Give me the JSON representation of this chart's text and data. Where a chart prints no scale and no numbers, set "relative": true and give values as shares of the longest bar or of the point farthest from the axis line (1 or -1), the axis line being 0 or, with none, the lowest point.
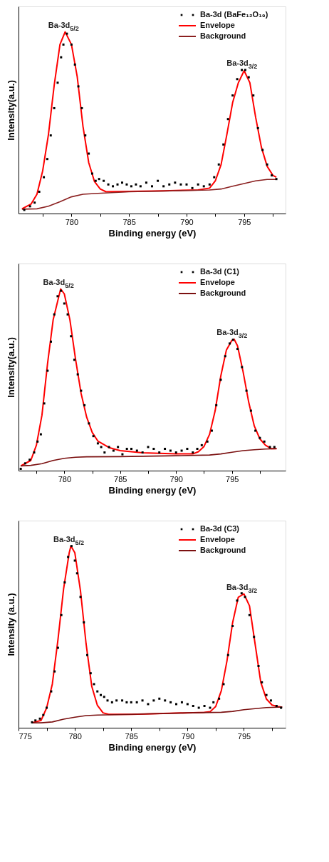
{
  "chart_data": [
    {
      "type": "line",
      "relative": true,
      "xlabel": "Binding energy (eV)",
      "ylabel": "Intensity(a.u.)",
      "tick_labels": "x",
      "legend": "top right",
      "xlim": [
        775.4,
        798.6
      ],
      "xticks": [
        {
          "value": 777.5,
          "label": null
        },
        780,
        {
          "value": 782.5,
          "label": null
        },
        785,
        {
          "value": 787.5,
          "label": null
        },
        790,
        {
          "value": 792.5,
          "label": null
        },
        795,
        {
          "value": 797.5,
          "label": null
        }
      ],
      "annotations": [
        {
          "text": "Ba-3d$_{5/2}$",
          "x": 779.5,
          "y": 1.0
        },
        {
          "text": "Ba-3d$_{3/2}$",
          "x": 795.0,
          "y": 0.79
        }
      ],
      "series": [
        {
          "name": "Ba-3d (BaFe₁₂O₁₉)",
          "type": "scatter",
          "marker": "square",
          "color": "#000000",
          "x": [
            775.9,
            776.4,
            776.8,
            777.2,
            777.6,
            777.9,
            778.2,
            778.5,
            778.8,
            779.1,
            779.3,
            779.6,
            780,
            780.3,
            780.6,
            780.9,
            781.2,
            781.5,
            781.8,
            782.1,
            782.4,
            782.8,
            783.2,
            783.6,
            784,
            784.4,
            784.8,
            785.2,
            785.6,
            786,
            786.5,
            787,
            787.5,
            788,
            788.5,
            789,
            789.5,
            790,
            790.5,
            791,
            791.5,
            792,
            792.4,
            792.8,
            793.2,
            793.6,
            794,
            794.4,
            794.8,
            795.1,
            795.4,
            795.8,
            796.2,
            796.6,
            797,
            797.4,
            797.8
          ],
          "values": [
            0.02,
            0.04,
            0.06,
            0.12,
            0.2,
            0.3,
            0.43,
            0.58,
            0.72,
            0.86,
            0.93,
            0.99,
            0.93,
            0.82,
            0.7,
            0.58,
            0.43,
            0.33,
            0.22,
            0.18,
            0.19,
            0.18,
            0.16,
            0.15,
            0.16,
            0.17,
            0.16,
            0.15,
            0.16,
            0.15,
            0.17,
            0.15,
            0.18,
            0.15,
            0.16,
            0.17,
            0.16,
            0.16,
            0.14,
            0.16,
            0.15,
            0.16,
            0.2,
            0.27,
            0.38,
            0.52,
            0.65,
            0.74,
            0.79,
            0.79,
            0.75,
            0.65,
            0.47,
            0.35,
            0.27,
            0.21,
            0.19
          ]
        },
        {
          "name": "Envelope",
          "color": "#ff0000",
          "x": [
            775.7,
            776.5,
            777,
            777.5,
            778,
            778.5,
            779,
            779.45,
            780,
            780.5,
            781,
            781.5,
            782,
            782.5,
            783,
            785,
            788,
            791,
            792,
            792.5,
            793,
            793.5,
            794,
            794.5,
            795,
            795.5,
            796,
            796.5,
            797,
            797.5,
            797.8
          ],
          "values": [
            0.026,
            0.053,
            0.106,
            0.235,
            0.435,
            0.706,
            0.93,
            1.0,
            0.93,
            0.753,
            0.48,
            0.28,
            0.176,
            0.135,
            0.12,
            0.122,
            0.125,
            0.13,
            0.14,
            0.18,
            0.27,
            0.435,
            0.61,
            0.72,
            0.786,
            0.72,
            0.53,
            0.365,
            0.26,
            0.21,
            0.2
          ]
        },
        {
          "name": "Background",
          "color": "#8b2020",
          "x": [
            775.7,
            777,
            778,
            779,
            780,
            781,
            782,
            785,
            790,
            792,
            793,
            794,
            795,
            796,
            797,
            797.8
          ],
          "values": [
            0.024,
            0.026,
            0.04,
            0.065,
            0.092,
            0.106,
            0.11,
            0.12,
            0.127,
            0.13,
            0.135,
            0.15,
            0.165,
            0.18,
            0.188,
            0.188
          ]
        }
      ]
    },
    {
      "type": "line",
      "relative": true,
      "xlabel": "Binding energy (eV)",
      "ylabel": "Intensity(a.u.)",
      "tick_labels": "x",
      "legend": "top right",
      "xlim": [
        775.9,
        799.8
      ],
      "xticks": [
        {
          "value": 777.5,
          "label": null
        },
        780,
        {
          "value": 782.5,
          "label": null
        },
        785,
        {
          "value": 787.5,
          "label": null
        },
        790,
        {
          "value": 792.5,
          "label": null
        },
        795,
        {
          "value": 797.5,
          "label": null
        }
      ],
      "annotations": [
        {
          "text": "Ba-3d$_{5/2}$",
          "x": 779.67,
          "y": 1.0
        },
        {
          "text": "Ba-3d$_{3/2}$",
          "x": 795.2,
          "y": 0.723
        }
      ],
      "series": [
        {
          "name": "Ba-3d (C1)",
          "type": "scatter",
          "marker": "square",
          "color": "#000000",
          "x": [
            776.1,
            776.5,
            776.9,
            777.3,
            777.6,
            777.9,
            778.2,
            778.5,
            778.8,
            779.1,
            779.4,
            779.7,
            780,
            780.3,
            780.6,
            780.9,
            781.2,
            781.5,
            781.8,
            782.2,
            782.6,
            783,
            783.3,
            783.6,
            784,
            784.4,
            784.8,
            785.2,
            785.6,
            786,
            786.5,
            787,
            787.5,
            788,
            788.5,
            789,
            789.5,
            790,
            790.5,
            791,
            791.5,
            791.9,
            792.3,
            792.8,
            793.2,
            793.6,
            794,
            794.4,
            794.8,
            795.1,
            795.5,
            795.9,
            796.3,
            796.7,
            797.1,
            797.5,
            797.9,
            798.4,
            798.8
          ],
          "values": [
            0.01,
            0.04,
            0.06,
            0.1,
            0.16,
            0.2,
            0.37,
            0.55,
            0.71,
            0.86,
            0.96,
            0.99,
            0.92,
            0.86,
            0.74,
            0.61,
            0.53,
            0.44,
            0.36,
            0.26,
            0.19,
            0.15,
            0.13,
            0.1,
            0.13,
            0.11,
            0.13,
            0.09,
            0.12,
            0.12,
            0.11,
            0.1,
            0.13,
            0.12,
            0.1,
            0.12,
            0.11,
            0.1,
            0.11,
            0.12,
            0.1,
            0.12,
            0.14,
            0.16,
            0.22,
            0.36,
            0.5,
            0.63,
            0.7,
            0.72,
            0.67,
            0.57,
            0.44,
            0.33,
            0.22,
            0.18,
            0.16,
            0.13,
            0.13
          ]
        },
        {
          "name": "Envelope",
          "color": "#ff0000",
          "x": [
            776.1,
            777,
            777.5,
            778,
            778.5,
            779,
            779.67,
            780,
            780.5,
            781,
            781.5,
            782,
            782.5,
            783,
            784,
            785,
            787,
            790,
            791.5,
            792,
            792.5,
            793,
            793.5,
            794,
            794.5,
            795,
            795.2,
            795.5,
            796,
            796.5,
            797,
            797.5,
            798,
            798.5,
            799
          ],
          "values": [
            0.026,
            0.056,
            0.14,
            0.306,
            0.59,
            0.83,
            1.0,
            0.973,
            0.83,
            0.615,
            0.425,
            0.294,
            0.21,
            0.163,
            0.127,
            0.11,
            0.098,
            0.092,
            0.092,
            0.104,
            0.133,
            0.2,
            0.33,
            0.52,
            0.663,
            0.717,
            0.723,
            0.687,
            0.544,
            0.377,
            0.246,
            0.175,
            0.14,
            0.121,
            0.121
          ]
        },
        {
          "name": "Background",
          "color": "#7b1010",
          "x": [
            776.1,
            777,
            778,
            779,
            780,
            781,
            782,
            785,
            790,
            793,
            794,
            795,
            796,
            797,
            798,
            799
          ],
          "values": [
            0.026,
            0.029,
            0.038,
            0.056,
            0.068,
            0.074,
            0.076,
            0.077,
            0.082,
            0.086,
            0.092,
            0.101,
            0.11,
            0.115,
            0.119,
            0.121
          ]
        }
      ]
    },
    {
      "type": "line",
      "relative": true,
      "xlabel": "Binding energy (eV)",
      "ylabel": "Intensity (a.u.)",
      "tick_labels": "x",
      "legend": "top right",
      "xlim": [
        775,
        798.7
      ],
      "xticks": [
        775,
        {
          "value": 777.5,
          "label": null
        },
        780,
        {
          "value": 782.5,
          "label": null
        },
        785,
        {
          "value": 787.5,
          "label": null
        },
        790,
        {
          "value": 792.5,
          "label": null
        },
        795,
        {
          "value": 797.5,
          "label": null
        }
      ],
      "annotations": [
        {
          "text": "Ba-3d$_{5/2}$",
          "x": 779.65,
          "y": 1.0
        },
        {
          "text": "Ba-3d$_{3/2}$",
          "x": 795.0,
          "y": 0.737
        }
      ],
      "series": [
        {
          "name": "Ba-3d (C3)",
          "type": "scatter",
          "marker": "square",
          "color": "#000000",
          "x": [
            776.2,
            776.5,
            776.9,
            777.2,
            777.5,
            777.9,
            778.2,
            778.5,
            778.8,
            779.1,
            779.4,
            779.7,
            780,
            780.2,
            780.5,
            780.8,
            781.1,
            781.4,
            781.7,
            782,
            782.3,
            782.6,
            782.9,
            783.3,
            783.7,
            784.2,
            784.6,
            785,
            785.5,
            786,
            786.5,
            787,
            787.5,
            788,
            788.5,
            789,
            789.5,
            790,
            790.5,
            791,
            791.5,
            792,
            792.3,
            792.8,
            793.2,
            793.6,
            794,
            794.4,
            794.8,
            795.1,
            795.5,
            795.9,
            796.3,
            796.6,
            797,
            797.4,
            797.9,
            798.3
          ],
          "values": [
            0.03,
            0.04,
            0.05,
            0.07,
            0.11,
            0.2,
            0.31,
            0.44,
            0.62,
            0.8,
            0.94,
            1.0,
            0.92,
            0.85,
            0.72,
            0.58,
            0.4,
            0.3,
            0.24,
            0.2,
            0.18,
            0.17,
            0.15,
            0.14,
            0.15,
            0.15,
            0.14,
            0.14,
            0.14,
            0.15,
            0.13,
            0.15,
            0.16,
            0.15,
            0.14,
            0.13,
            0.14,
            0.13,
            0.12,
            0.11,
            0.12,
            0.11,
            0.14,
            0.16,
            0.24,
            0.4,
            0.56,
            0.7,
            0.74,
            0.72,
            0.62,
            0.5,
            0.34,
            0.25,
            0.18,
            0.15,
            0.12,
            0.11
          ]
        },
        {
          "name": "Envelope",
          "color": "#ff0000",
          "x": [
            776.2,
            777,
            777.5,
            778,
            778.5,
            779,
            779.5,
            779.65,
            780,
            780.5,
            781,
            781.5,
            782,
            782.5,
            783,
            785,
            790,
            791.5,
            792,
            792.5,
            793,
            793.5,
            794,
            794.5,
            795,
            795.5,
            796,
            796.5,
            797,
            797.5,
            798,
            798.4
          ],
          "values": [
            0.027,
            0.04,
            0.11,
            0.24,
            0.484,
            0.764,
            0.963,
            1.0,
            0.963,
            0.753,
            0.46,
            0.228,
            0.123,
            0.082,
            0.074,
            0.074,
            0.082,
            0.085,
            0.088,
            0.117,
            0.204,
            0.368,
            0.578,
            0.718,
            0.737,
            0.671,
            0.46,
            0.25,
            0.158,
            0.125,
            0.117,
            0.113
          ]
        },
        {
          "name": "Background",
          "color": "#7b1010",
          "x": [
            776.2,
            777,
            778,
            779,
            780,
            781,
            782,
            785,
            790,
            793,
            794,
            795,
            796,
            797,
            798,
            798.4
          ],
          "values": [
            0.027,
            0.027,
            0.032,
            0.047,
            0.058,
            0.067,
            0.07,
            0.074,
            0.082,
            0.085,
            0.09,
            0.099,
            0.105,
            0.111,
            0.113,
            0.113
          ]
        }
      ]
    }
  ]
}
